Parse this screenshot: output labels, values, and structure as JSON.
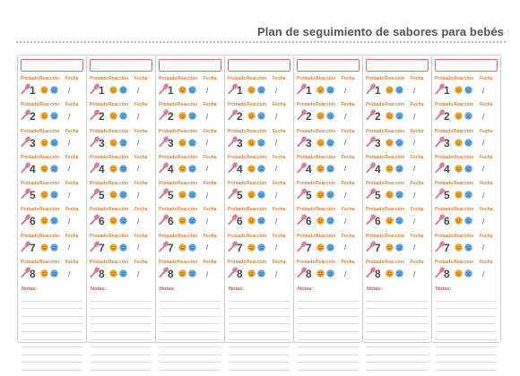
{
  "page": {
    "title": "Plan de seguimiento de sabores para bebés"
  },
  "headers": {
    "tried": "Probado",
    "reaction": "Reacción",
    "date": "Fecha"
  },
  "date_separator": "/",
  "notes_label": "Notas:",
  "columns_count": 7,
  "entry_numbers": [
    "1",
    "2",
    "3",
    "4",
    "5",
    "6",
    "7",
    "8"
  ],
  "note_lines_per_column": 10,
  "icons": {
    "spoon": "spoon-icon",
    "happy": "happy-face-icon",
    "sad": "sad-face-icon"
  },
  "colors": {
    "accent_red": "#e0504d",
    "header_orange": "#e8802b",
    "happy_face": "#f5a623",
    "sad_face": "#5aa9e6",
    "spoon": "#e27a9a"
  }
}
